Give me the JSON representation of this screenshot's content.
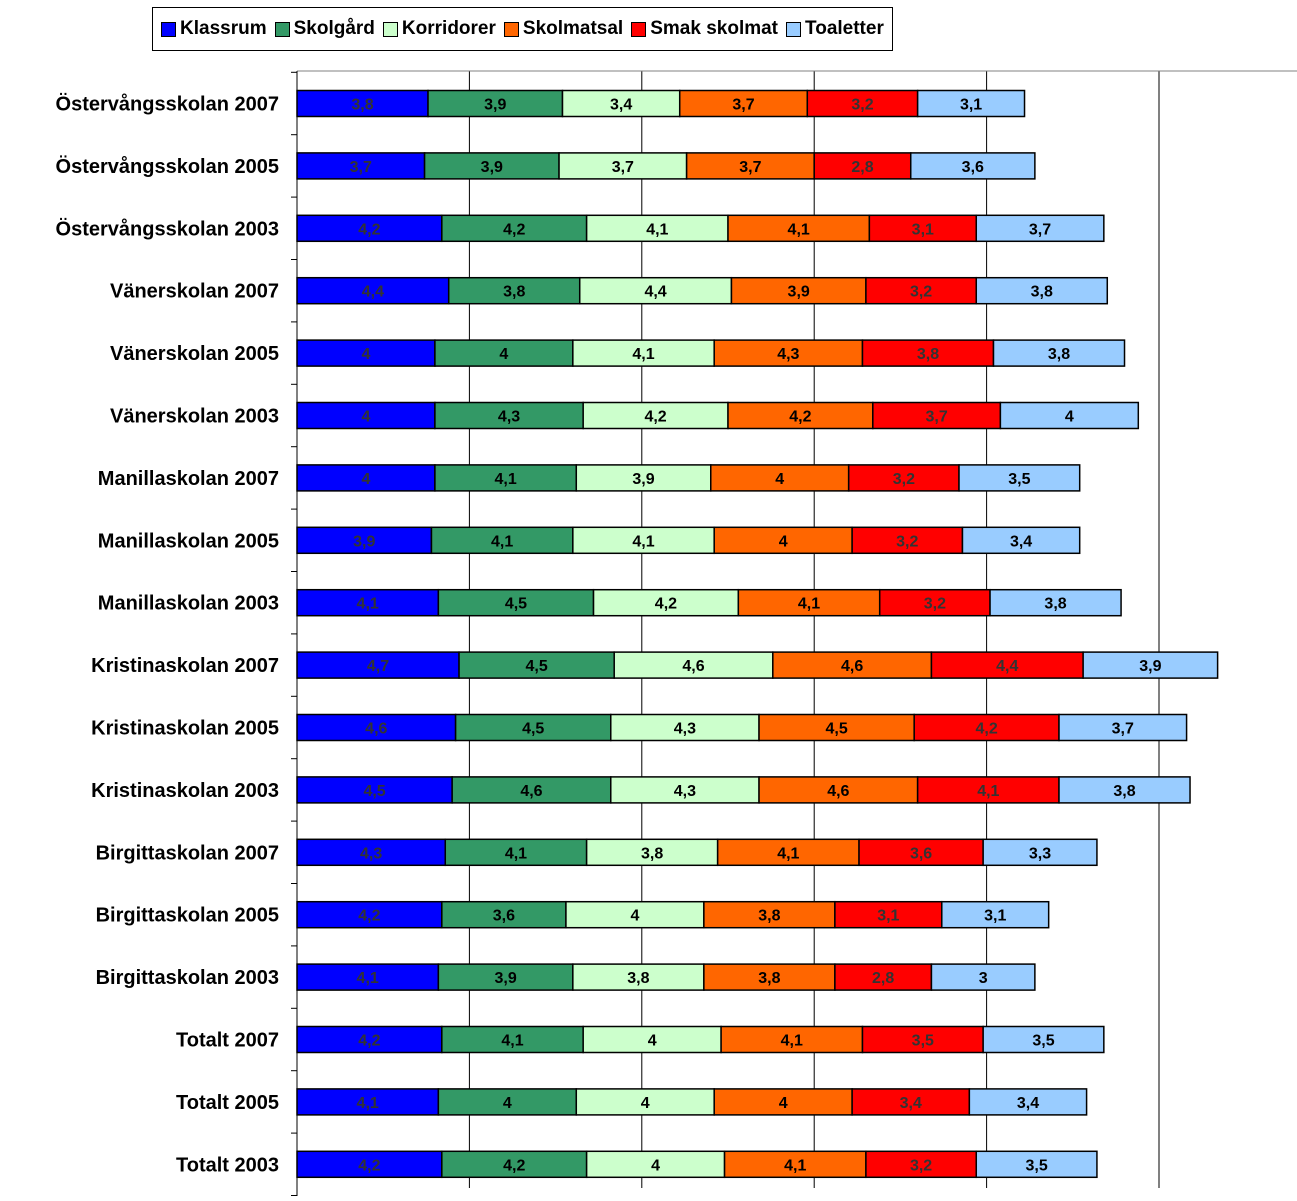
{
  "chart_data": {
    "type": "bar",
    "orientation": "horizontal",
    "stacked": true,
    "categories": [
      "Östervångsskolan 2007",
      "Östervångsskolan 2005",
      "Östervångsskolan 2003",
      "Vänerskolan 2007",
      "Vänerskolan 2005",
      "Vänerskolan 2003",
      "Manillaskolan 2007",
      "Manillaskolan 2005",
      "Manillaskolan 2003",
      "Kristinaskolan 2007",
      "Kristinaskolan 2005",
      "Kristinaskolan 2003",
      "Birgittaskolan 2007",
      "Birgittaskolan 2005",
      "Birgittaskolan 2003",
      "Totalt 2007",
      "Totalt 2005",
      "Totalt 2003"
    ],
    "series": [
      {
        "name": "Klassrum",
        "color": "#0000FF",
        "label_color": "#333333",
        "values": [
          3.8,
          3.7,
          4.2,
          4.4,
          4,
          4,
          4,
          3.9,
          4.1,
          4.7,
          4.6,
          4.5,
          4.3,
          4.2,
          4.1,
          4.2,
          4.1,
          4.2
        ]
      },
      {
        "name": "Skolgård",
        "color": "#339966",
        "label_color": "#000000",
        "values": [
          3.9,
          3.9,
          4.2,
          3.8,
          4,
          4.3,
          4.1,
          4.1,
          4.5,
          4.5,
          4.5,
          4.6,
          4.1,
          3.6,
          3.9,
          4.1,
          4,
          4.2
        ]
      },
      {
        "name": "Korridorer",
        "color": "#CCFFCC",
        "label_color": "#000000",
        "values": [
          3.4,
          3.7,
          4.1,
          4.4,
          4.1,
          4.2,
          3.9,
          4.1,
          4.2,
          4.6,
          4.3,
          4.3,
          3.8,
          4,
          3.8,
          4,
          4,
          4
        ]
      },
      {
        "name": "Skolmatsal",
        "color": "#FF6600",
        "label_color": "#000000",
        "values": [
          3.7,
          3.7,
          4.1,
          3.9,
          4.3,
          4.2,
          4,
          4,
          4.1,
          4.6,
          4.5,
          4.6,
          4.1,
          3.8,
          3.8,
          4.1,
          4,
          4.1
        ]
      },
      {
        "name": "Smak skolmat",
        "color": "#FF0000",
        "label_color": "#333333",
        "values": [
          3.2,
          2.8,
          3.1,
          3.2,
          3.8,
          3.7,
          3.2,
          3.2,
          3.2,
          4.4,
          4.2,
          4.1,
          3.6,
          3.1,
          2.8,
          3.5,
          3.4,
          3.2
        ]
      },
      {
        "name": "Toaletter",
        "color": "#99CCFF",
        "label_color": "#000000",
        "values": [
          3.1,
          3.6,
          3.7,
          3.8,
          3.8,
          4,
          3.5,
          3.4,
          3.8,
          3.9,
          3.7,
          3.8,
          3.3,
          3.1,
          3,
          3.5,
          3.4,
          3.5
        ]
      }
    ],
    "title": "",
    "xlabel": "",
    "ylabel": "",
    "xlim": [
      0,
      29
    ],
    "gridlines": [
      5,
      10,
      15,
      20,
      25
    ],
    "grid": true,
    "legend": "top",
    "decimal_separator": ","
  }
}
